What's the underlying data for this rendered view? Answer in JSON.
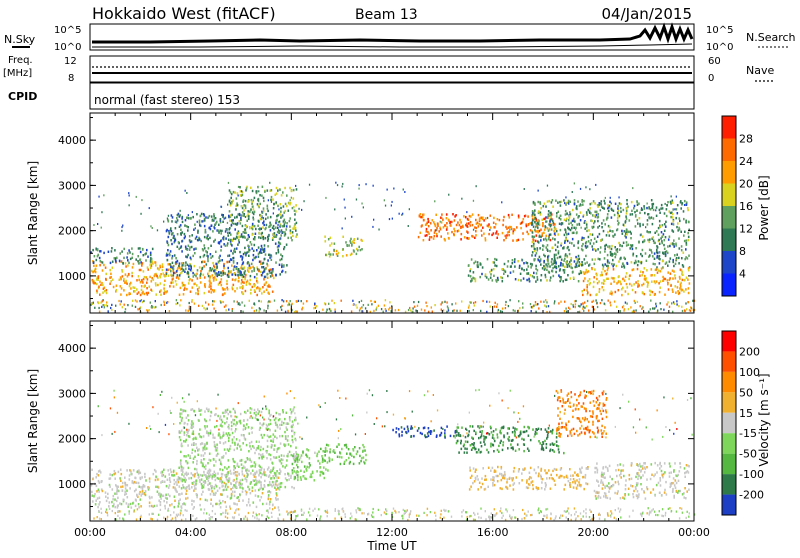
{
  "header": {
    "radar": "Hokkaido West (fitACF)",
    "beam": "Beam 13",
    "date": "04/Jan/2015"
  },
  "info_panel": {
    "nsky_label": "N.Sky",
    "nsky_ticks": [
      "10^5",
      "10^0"
    ],
    "nsearch_label": "N.Search",
    "nsearch_ticks": [
      "10^5",
      "10^0"
    ],
    "freq_label_1": "Freq.",
    "freq_label_2": "[MHz]",
    "freq_ticks": [
      "12",
      "8"
    ],
    "nave_label": "Nave",
    "nave_ticks": [
      "60",
      "0"
    ],
    "cpid_label": "CPID",
    "cpid_text": "normal (fast stereo) 153"
  },
  "colors": {
    "power_scale": [
      "#0a24ff",
      "#1e46c8",
      "#2f7a55",
      "#5fa05f",
      "#d9d21e",
      "#ff9c00",
      "#ff6a00",
      "#ff1e00"
    ],
    "velocity_scale": [
      "#1d3fc6",
      "#2e7a48",
      "#55b840",
      "#7ed65a",
      "#c8c8c8",
      "#f0b030",
      "#ff8c00",
      "#ff5000",
      "#ff0000"
    ]
  },
  "chart_data": [
    {
      "type": "heatmap",
      "title": "Power",
      "ylabel": "Slant Range [km]",
      "ylim": [
        180,
        4600
      ],
      "yticks": [
        "4000",
        "3000",
        "2000",
        "1000"
      ],
      "xlim_hours": [
        0,
        24
      ],
      "colorbar": {
        "label": "Power [dB]",
        "ticks": [
          "28",
          "24",
          "20",
          "16",
          "12",
          "8",
          "4"
        ],
        "range": [
          0,
          32
        ]
      },
      "regions": [
        {
          "t": [
            0.0,
            7.3
          ],
          "r": [
            600,
            1350
          ],
          "v": 22
        },
        {
          "t": [
            0.0,
            2.5
          ],
          "r": [
            1300,
            1650
          ],
          "v": 10
        },
        {
          "t": [
            3.0,
            7.8
          ],
          "r": [
            1000,
            2400
          ],
          "v": 10
        },
        {
          "t": [
            5.5,
            8.2
          ],
          "r": [
            1800,
            3000
          ],
          "v": 14
        },
        {
          "t": [
            9.3,
            10.8
          ],
          "r": [
            1450,
            1900
          ],
          "v": 17
        },
        {
          "t": [
            13.0,
            18.5
          ],
          "r": [
            1800,
            2400
          ],
          "v": 25
        },
        {
          "t": [
            15.0,
            19.5
          ],
          "r": [
            900,
            1400
          ],
          "v": 12
        },
        {
          "t": [
            17.5,
            23.8
          ],
          "r": [
            1200,
            2700
          ],
          "v": 12
        },
        {
          "t": [
            19.5,
            23.8
          ],
          "r": [
            600,
            1200
          ],
          "v": 21
        }
      ]
    },
    {
      "type": "heatmap",
      "title": "Velocity",
      "xlabel": "Time UT",
      "ylabel": "Slant Range [km]",
      "ylim": [
        180,
        4600
      ],
      "yticks": [
        "4000",
        "3000",
        "2000",
        "1000"
      ],
      "xticks": [
        "00:00",
        "04:00",
        "08:00",
        "12:00",
        "16:00",
        "20:00",
        "00:00"
      ],
      "xlim_hours": [
        0,
        24
      ],
      "colorbar": {
        "label": "Velocity [m s⁻¹]",
        "ticks": [
          "200",
          "100",
          "50",
          "15",
          "-15",
          "-50",
          "-100",
          "-200"
        ],
        "range": [
          -250,
          250
        ]
      },
      "regions": [
        {
          "t": [
            0.0,
            7.5
          ],
          "r": [
            500,
            1350
          ],
          "v": 0
        },
        {
          "t": [
            3.5,
            8.2
          ],
          "r": [
            900,
            2700
          ],
          "v": -30
        },
        {
          "t": [
            8.0,
            9.5
          ],
          "r": [
            1100,
            1800
          ],
          "v": -60
        },
        {
          "t": [
            9.3,
            11.0
          ],
          "r": [
            1450,
            1900
          ],
          "v": -90
        },
        {
          "t": [
            12.0,
            14.5
          ],
          "r": [
            2050,
            2300
          ],
          "v": -220
        },
        {
          "t": [
            14.5,
            18.8
          ],
          "r": [
            1700,
            2300
          ],
          "v": -150
        },
        {
          "t": [
            15.0,
            19.8
          ],
          "r": [
            900,
            1400
          ],
          "v": 40
        },
        {
          "t": [
            18.5,
            20.5
          ],
          "r": [
            2050,
            3100
          ],
          "v": 120
        },
        {
          "t": [
            20.0,
            23.8
          ],
          "r": [
            700,
            1500
          ],
          "v": 0
        }
      ]
    }
  ]
}
